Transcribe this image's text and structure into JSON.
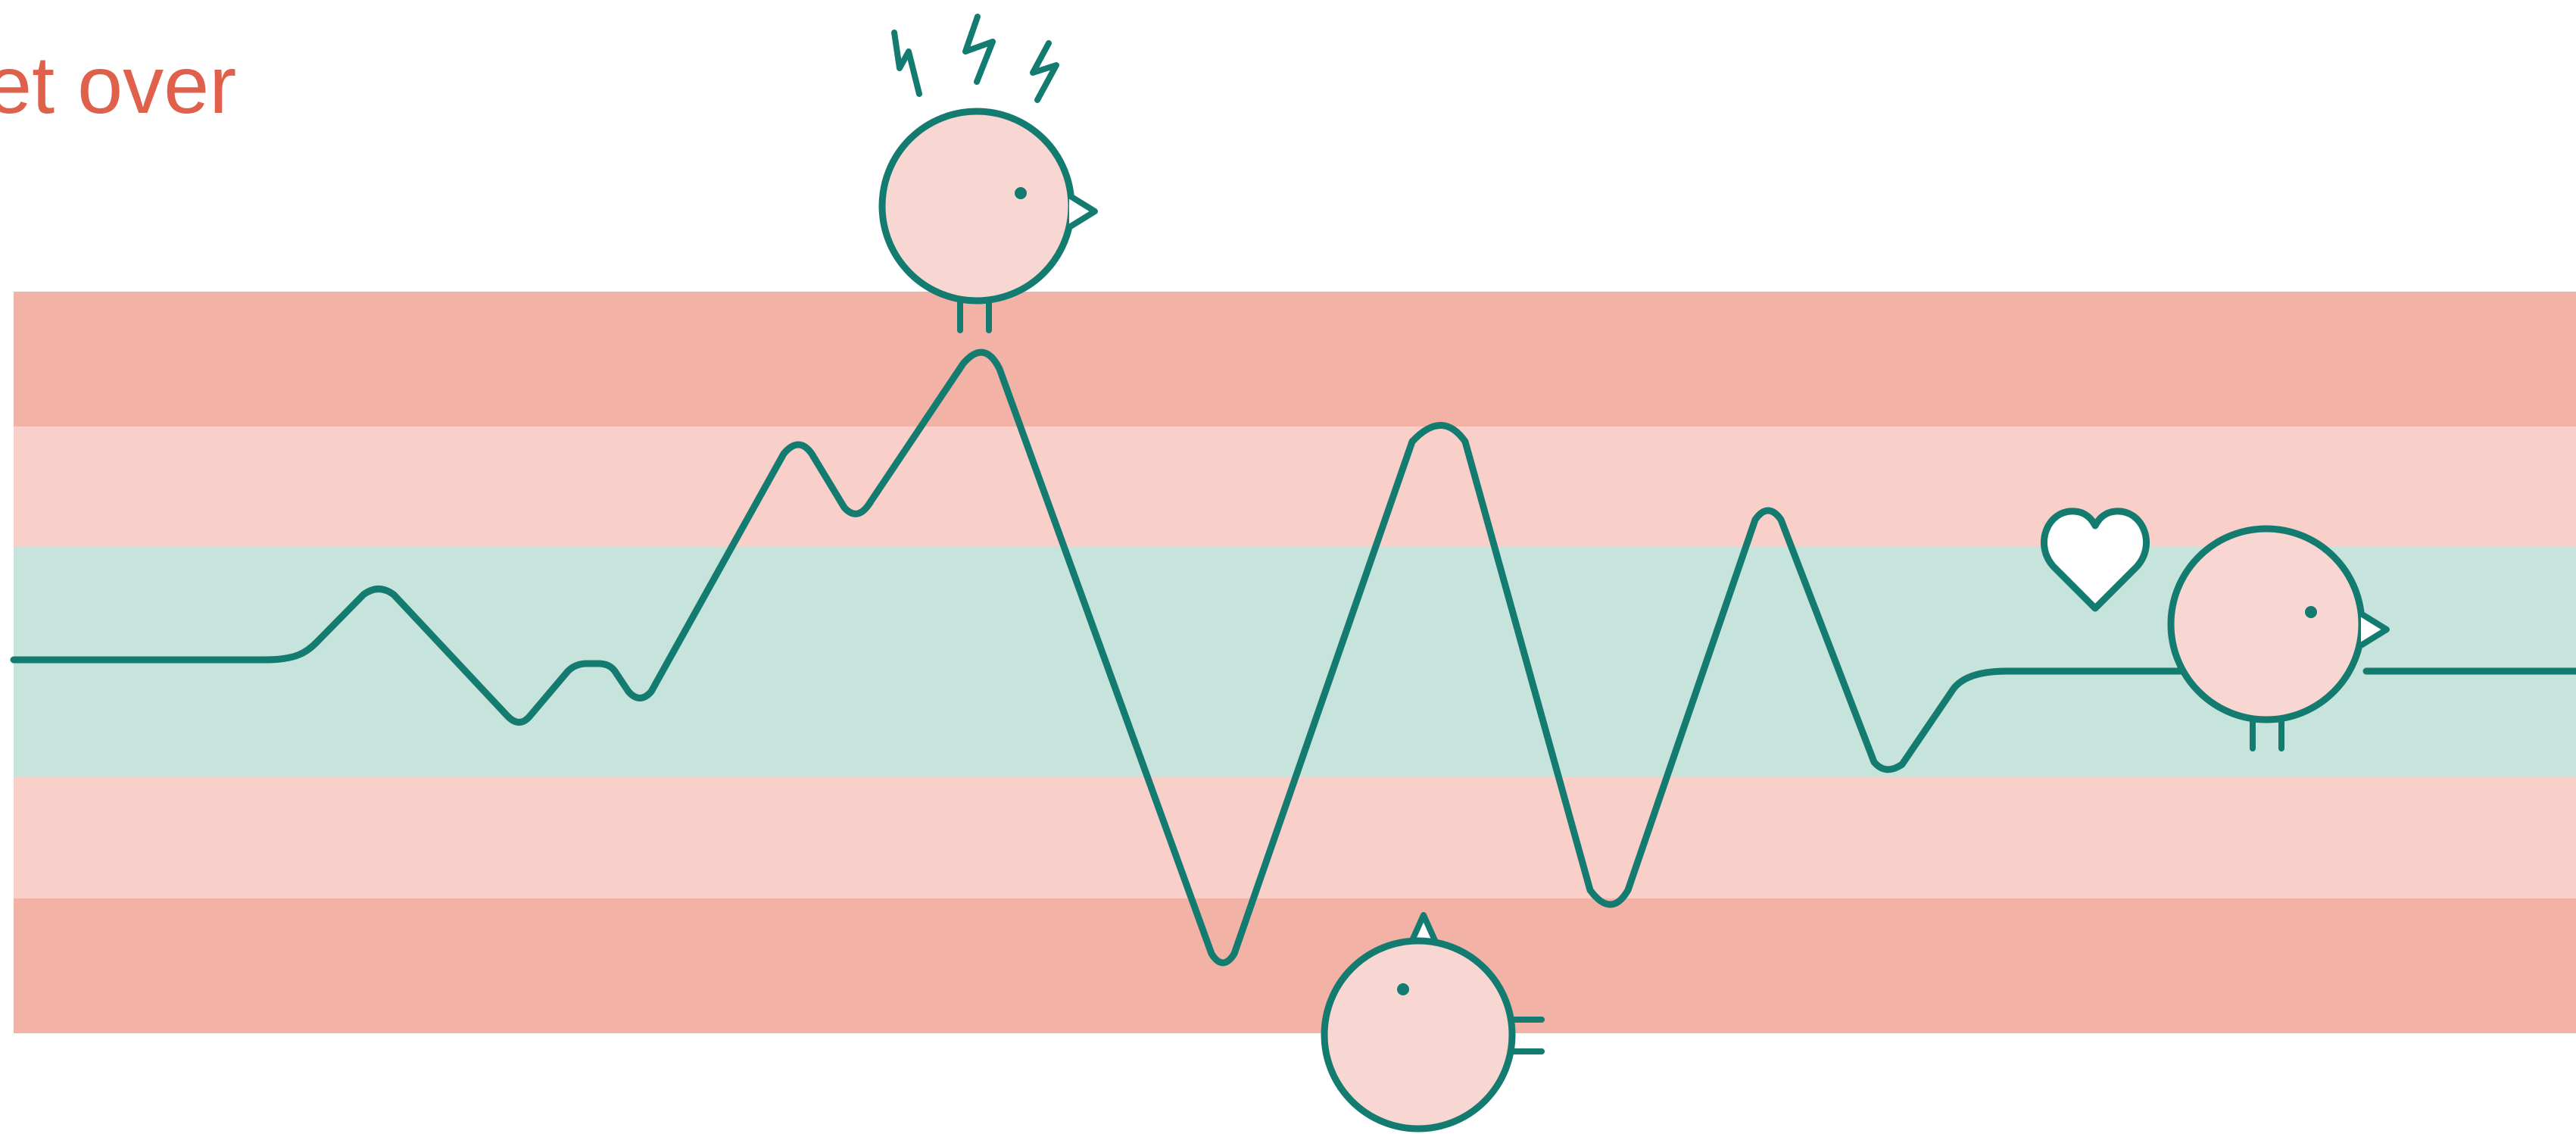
{
  "heading": {
    "text": "et over"
  },
  "colors": {
    "outer_band": "#f3b2a6",
    "middle_band": "#f8cfc9",
    "calm_band": "#c6e3dc",
    "line": "#137b70",
    "bird_body": "#f8d7d2",
    "heading_text": "#e0614b",
    "background": "#ffffff"
  },
  "zones": [
    "outer-high",
    "middle-high",
    "calm",
    "middle-low",
    "outer-low"
  ],
  "birds": [
    {
      "name": "agitated-bird",
      "orientation": "upright",
      "accessory": "lightning-bolts"
    },
    {
      "name": "upside-down-bird",
      "orientation": "inverted",
      "accessory": "none"
    },
    {
      "name": "content-bird",
      "orientation": "upright",
      "accessory": "heart"
    }
  ]
}
